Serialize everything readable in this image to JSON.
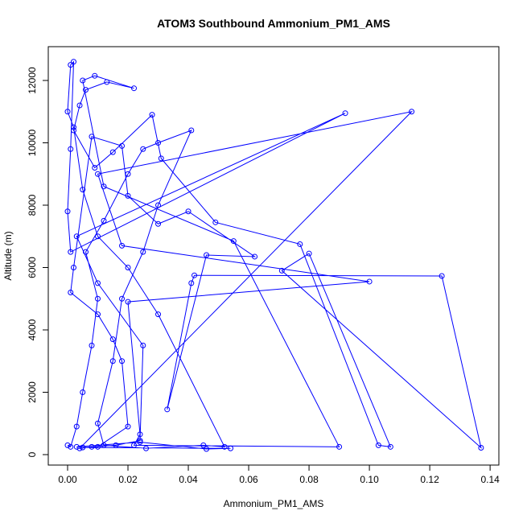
{
  "chart_data": {
    "type": "line",
    "title": "ATOM3 Southbound Ammonium_PM1_AMS",
    "xlabel": "Ammonium_PM1_AMS",
    "ylabel": "Altitude (m)",
    "xlim": [
      -0.0064,
      0.1429
    ],
    "ylim": [
      -335,
      13084
    ],
    "xticks": [
      {
        "value": 0,
        "label": "0.00"
      },
      {
        "value": 0.02,
        "label": "0.02"
      },
      {
        "value": 0.04,
        "label": "0.04"
      },
      {
        "value": 0.06,
        "label": "0.06"
      },
      {
        "value": 0.08,
        "label": "0.08"
      },
      {
        "value": 0.1,
        "label": "0.10"
      },
      {
        "value": 0.12,
        "label": "0.12"
      },
      {
        "value": 0.14,
        "label": "0.14"
      }
    ],
    "yticks": [
      0,
      2000,
      4000,
      6000,
      8000,
      10000,
      12000
    ],
    "series": [
      {
        "name": "Ammonium_PM1_AMS",
        "color": "#0000ff",
        "x": [
          0.0,
          0.001,
          0.003,
          0.005,
          0.008,
          0.01,
          0.006,
          0.012,
          0.02,
          0.025,
          0.03,
          0.041,
          0.03,
          0.025,
          0.018,
          0.015,
          0.01,
          0.012,
          0.026,
          0.045,
          0.052,
          0.03,
          0.02,
          0.01,
          0.005,
          0.002,
          0.0,
          0.001,
          0.002,
          0.001,
          0.0,
          0.001,
          0.092,
          0.003,
          0.01,
          0.025,
          0.024,
          0.016,
          0.008,
          0.004,
          0.114,
          0.01,
          0.018,
          0.1,
          0.02,
          0.024,
          0.022,
          0.09,
          0.055,
          0.012,
          0.005,
          0.009,
          0.022,
          0.013,
          0.006,
          0.004,
          0.002,
          0.009,
          0.015,
          0.028,
          0.031,
          0.049,
          0.077,
          0.103,
          0.107,
          0.08,
          0.071,
          0.137,
          0.124,
          0.042,
          0.041,
          0.033,
          0.046,
          0.062,
          0.04,
          0.03,
          0.02,
          0.018,
          0.008,
          0.002,
          0.001,
          0.01,
          0.015,
          0.018,
          0.02,
          0.01,
          0.005,
          0.054,
          0.046,
          0.024,
          0.003
        ],
        "values": [
          300,
          250,
          900,
          2000,
          3500,
          5000,
          6500,
          7500,
          9000,
          9800,
          10000,
          10400,
          8000,
          6500,
          5000,
          3000,
          1000,
          300,
          200,
          300,
          250,
          4500,
          6000,
          7000,
          8500,
          10500,
          11000,
          12500,
          12600,
          9800,
          7800,
          6500,
          10950,
          7000,
          5500,
          3500,
          450,
          300,
          250,
          200,
          11000,
          9000,
          6700,
          5550,
          4900,
          650,
          300,
          250,
          6850,
          8600,
          12000,
          12150,
          11750,
          11950,
          11700,
          11200,
          10400,
          9200,
          9700,
          10900,
          9500,
          7450,
          6750,
          300,
          250,
          6450,
          5900,
          220,
          5730,
          5750,
          5500,
          1450,
          6400,
          6350,
          7800,
          7400,
          8300,
          9900,
          10200,
          6000,
          5200,
          4500,
          3700,
          3000,
          900,
          250,
          230,
          200,
          180,
          400,
          250
        ]
      }
    ]
  }
}
